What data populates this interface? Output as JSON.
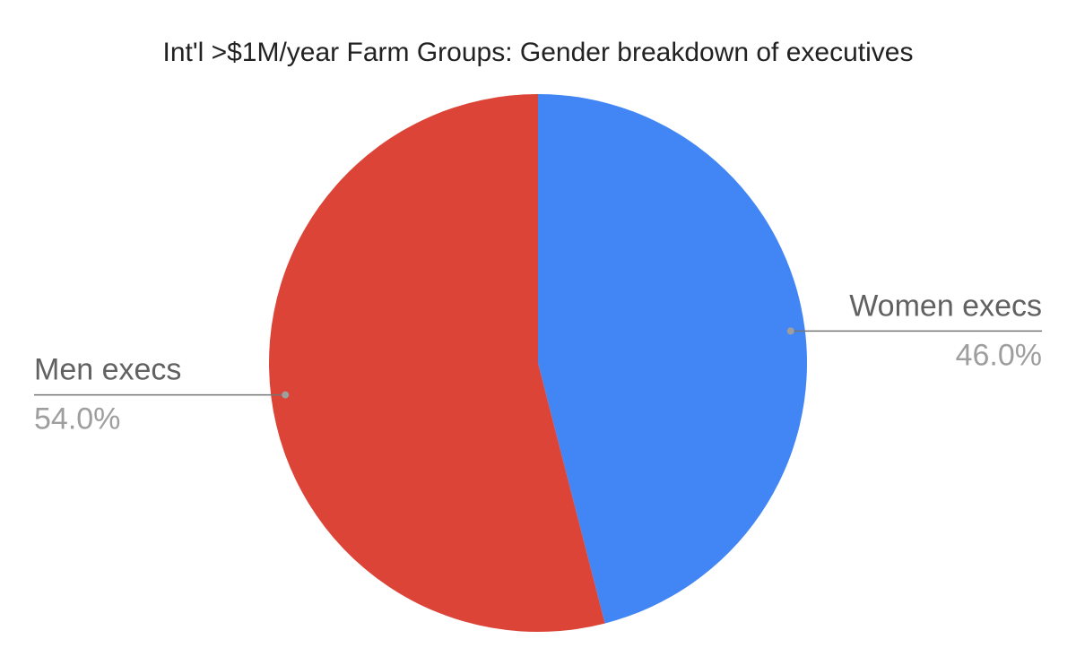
{
  "chart_data": {
    "type": "pie",
    "title": "Int'l >$1M/year Farm Groups: Gender breakdown of executives",
    "categories": [
      "Women execs",
      "Men execs"
    ],
    "values": [
      46.0,
      54.0
    ],
    "value_labels": [
      "46.0%",
      "54.0%"
    ],
    "colors": [
      "#4285f4",
      "#db4437"
    ]
  }
}
